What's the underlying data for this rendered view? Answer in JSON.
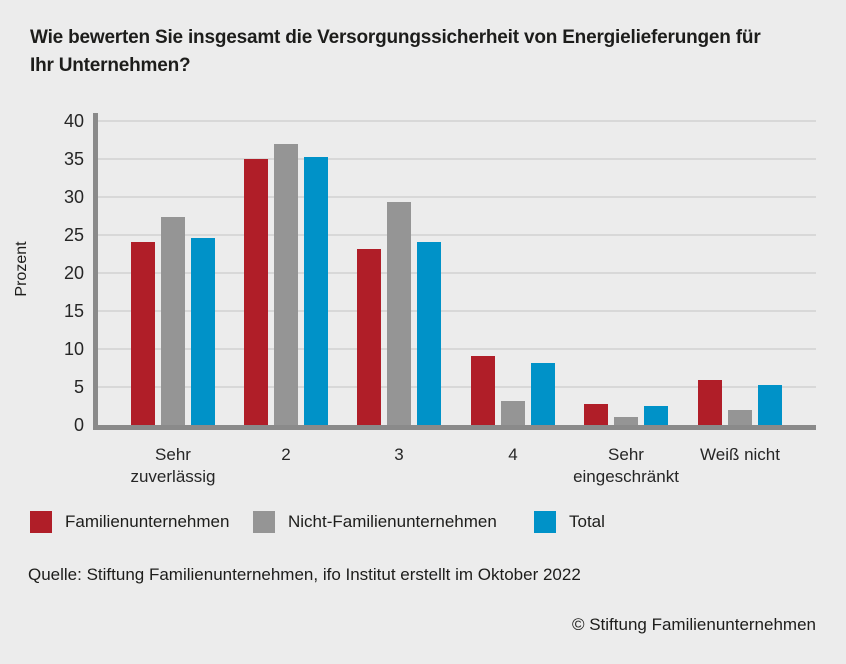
{
  "title": "Wie bewerten Sie insgesamt die Versorgungssicherheit von Energielieferungen für\nIhr Unternehmen?",
  "source": "Quelle: Stiftung Familienunternehmen, ifo Institut erstellt im Oktober 2022",
  "copyright": "© Stiftung Familienunternehmen",
  "colors": {
    "background": "#ececec",
    "axis": "#8a8a8a",
    "gridline": "#d8d8d8",
    "text": "#1d1d1b"
  },
  "chart_data": {
    "type": "bar",
    "title": "Wie bewerten Sie insgesamt die Versorgungssicherheit von Energielieferungen für Ihr Unternehmen?",
    "xlabel": "",
    "ylabel": "Prozent",
    "ylim": [
      0,
      40
    ],
    "ytick_step": 5,
    "grid": true,
    "legend_position": "bottom",
    "categories": [
      "Sehr\nzuverlässig",
      "2",
      "3",
      "4",
      "Sehr\neingeschränkt",
      "Weiß nicht"
    ],
    "series": [
      {
        "name": "Familienunternehmen",
        "color": "#b01e28",
        "values": [
          24.1,
          35.0,
          23.1,
          9.1,
          2.7,
          5.9
        ]
      },
      {
        "name": "Nicht-Familienunternehmen",
        "color": "#959595",
        "values": [
          27.4,
          37.0,
          29.3,
          3.1,
          1.0,
          2.0
        ]
      },
      {
        "name": "Total",
        "color": "#0092c8",
        "values": [
          24.6,
          35.3,
          24.1,
          8.2,
          2.5,
          5.3
        ]
      }
    ]
  }
}
